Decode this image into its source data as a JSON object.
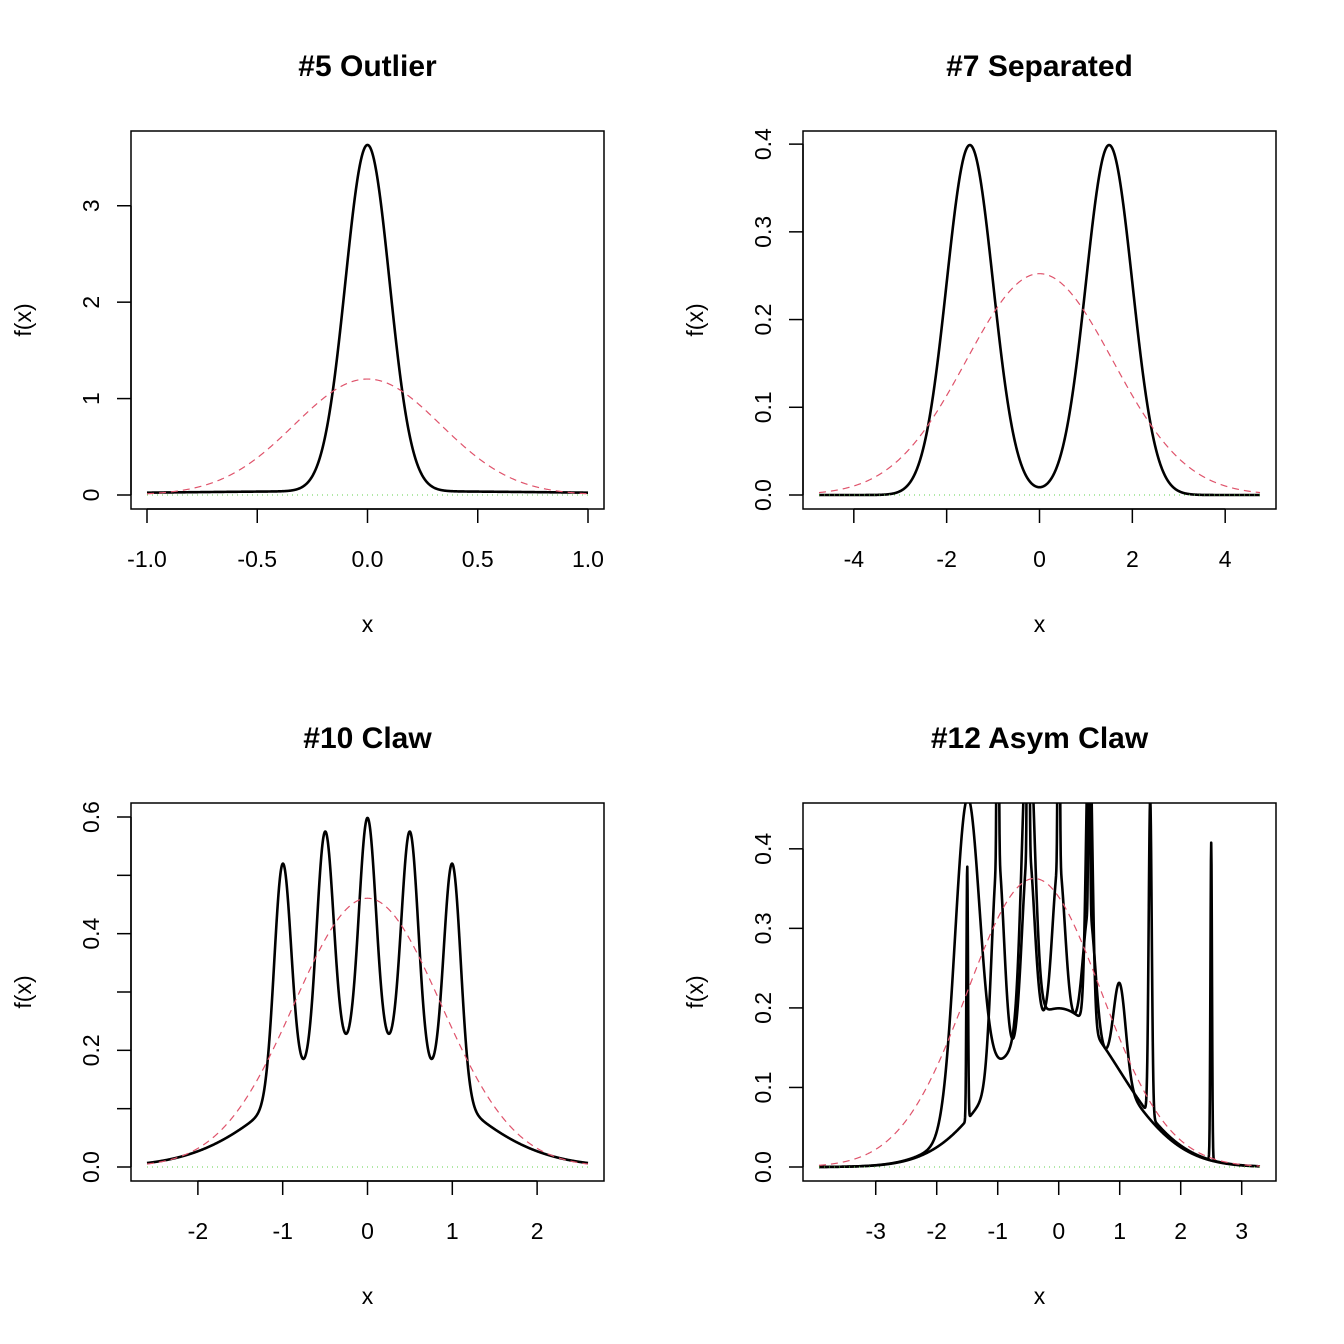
{
  "chart_data": [
    {
      "type": "line",
      "title": "#5 Outlier",
      "xlabel": "x",
      "ylabel": "f(x)",
      "xlim": [
        -1.0,
        1.0
      ],
      "ylim": [
        0,
        3.63
      ],
      "xticks": [
        -1.0,
        -0.5,
        0.0,
        0.5,
        1.0
      ],
      "xtick_labels": [
        "-1.0",
        "-0.5",
        "0.0",
        "0.5",
        "1.0"
      ],
      "yticks": [
        0,
        1,
        2,
        3
      ],
      "ytick_labels": [
        "0",
        "1",
        "2",
        "3"
      ],
      "grid": false,
      "legend": "none",
      "series": [
        {
          "style": "solid",
          "color": "#000000",
          "formula": "mixture",
          "components": [
            {
              "w": 0.1,
              "mu": 0,
              "sd": 1
            },
            {
              "w": 0.9,
              "mu": 0,
              "sd": 0.1
            }
          ]
        },
        {
          "style": "dashed",
          "color": "#DF536B",
          "formula": "normal",
          "mu": 0,
          "sd": 0.3317
        },
        {
          "style": "dotted",
          "color": "#61D04F",
          "formula": "zero"
        }
      ]
    },
    {
      "type": "line",
      "title": "#7 Separated",
      "xlabel": "x",
      "ylabel": "f(x)",
      "xlim": [
        -4.75,
        4.75
      ],
      "ylim": [
        0,
        0.399
      ],
      "xticks": [
        -4,
        -2,
        0,
        2,
        4
      ],
      "xtick_labels": [
        "-4",
        "-2",
        "0",
        "2",
        "4"
      ],
      "yticks": [
        0.0,
        0.1,
        0.2,
        0.3,
        0.4
      ],
      "ytick_labels": [
        "0.0",
        "0.1",
        "0.2",
        "0.3",
        "0.4"
      ],
      "grid": false,
      "legend": "none",
      "series": [
        {
          "style": "solid",
          "color": "#000000",
          "formula": "mixture",
          "components": [
            {
              "w": 0.5,
              "mu": -1.5,
              "sd": 0.5
            },
            {
              "w": 0.5,
              "mu": 1.5,
              "sd": 0.5
            }
          ]
        },
        {
          "style": "dashed",
          "color": "#DF536B",
          "formula": "normal",
          "mu": 0,
          "sd": 1.5811
        },
        {
          "style": "dotted",
          "color": "#61D04F",
          "formula": "zero"
        }
      ]
    },
    {
      "type": "line",
      "title": "#10 Claw",
      "xlabel": "x",
      "ylabel": "f(x)",
      "xlim": [
        -2.6,
        2.6
      ],
      "ylim": [
        0,
        0.6
      ],
      "xticks": [
        -2,
        -1,
        0,
        1,
        2
      ],
      "xtick_labels": [
        "-2",
        "-1",
        "0",
        "1",
        "2"
      ],
      "yticks": [
        0.0,
        0.1,
        0.2,
        0.3,
        0.4,
        0.5,
        0.6
      ],
      "ytick_labels": [
        "0.0",
        "",
        "0.2",
        "",
        "0.4",
        "",
        "0.6"
      ],
      "grid": false,
      "legend": "none",
      "series": [
        {
          "style": "solid",
          "color": "#000000",
          "formula": "mixture",
          "components": [
            {
              "w": 0.5,
              "mu": 0,
              "sd": 1
            },
            {
              "w": 0.1,
              "mu": -1,
              "sd": 0.1
            },
            {
              "w": 0.1,
              "mu": -0.5,
              "sd": 0.1
            },
            {
              "w": 0.1,
              "mu": 0,
              "sd": 0.1
            },
            {
              "w": 0.1,
              "mu": 0.5,
              "sd": 0.1
            },
            {
              "w": 0.1,
              "mu": 1,
              "sd": 0.1
            }
          ]
        },
        {
          "style": "dashed",
          "color": "#DF536B",
          "formula": "normal",
          "mu": 0,
          "sd": 0.866
        },
        {
          "style": "dotted",
          "color": "#61D04F",
          "formula": "zero"
        }
      ]
    },
    {
      "type": "line",
      "title": "#12 Asym Claw",
      "xlabel": "x",
      "ylabel": "f(x)",
      "xlim": [
        -3.93,
        3.3
      ],
      "ylim": [
        0,
        0.44
      ],
      "xticks": [
        -3,
        -2,
        -1,
        0,
        1,
        2,
        3
      ],
      "xtick_labels": [
        "-3",
        "-2",
        "-1",
        "0",
        "1",
        "2",
        "3"
      ],
      "yticks": [
        0.0,
        0.1,
        0.2,
        0.3,
        0.4
      ],
      "ytick_labels": [
        "0.0",
        "0.1",
        "0.2",
        "0.3",
        "0.4"
      ],
      "grid": false,
      "legend": "none",
      "series": [
        {
          "style": "solid",
          "color": "#000000",
          "formula": "mixture",
          "components": [
            {
              "w": 0.5,
              "mu": 0,
              "sd": 1
            },
            {
              "w": 0.0125,
              "mu": 2.5,
              "sd": 0.0125
            },
            {
              "w": 0.025,
              "mu": 1.5,
              "sd": 0.025
            },
            {
              "w": 0.05,
              "mu": 0.5,
              "sd": 0.05
            },
            {
              "w": 0.1,
              "mu": -0.5,
              "sd": 0.1
            },
            {
              "w": 0.2,
              "mu": -1.5,
              "sd": 0.2
            }
          ]
        },
        {
          "style": "solid",
          "color": "#000000",
          "formula": "mixture",
          "components": [
            {
              "w": 0.46,
              "mu": 0,
              "sd": 1
            },
            {
              "w": 0.01,
              "mu": -1.5,
              "sd": 0.0125
            },
            {
              "w": 0.02,
              "mu": -1,
              "sd": 0.0125
            },
            {
              "w": 0.03,
              "mu": -0.5,
              "sd": 0.0125
            },
            {
              "w": 0.02,
              "mu": 0,
              "sd": 0.0125
            },
            {
              "w": 0.01,
              "mu": 0.5,
              "sd": 0.0125
            },
            {
              "w": 0.07,
              "mu": -1,
              "sd": 0.1
            },
            {
              "w": 0.06,
              "mu": -0.5,
              "sd": 0.1
            },
            {
              "w": 0.05,
              "mu": 0,
              "sd": 0.1
            },
            {
              "w": 0.04,
              "mu": 0.5,
              "sd": 0.1
            },
            {
              "w": 0.03,
              "mu": 1,
              "sd": 0.1
            }
          ]
        },
        {
          "style": "dashed",
          "color": "#DF536B",
          "formula": "normal",
          "mu": -0.4,
          "sd": 1.1
        },
        {
          "style": "dotted",
          "color": "#61D04F",
          "formula": "zero"
        }
      ]
    }
  ]
}
